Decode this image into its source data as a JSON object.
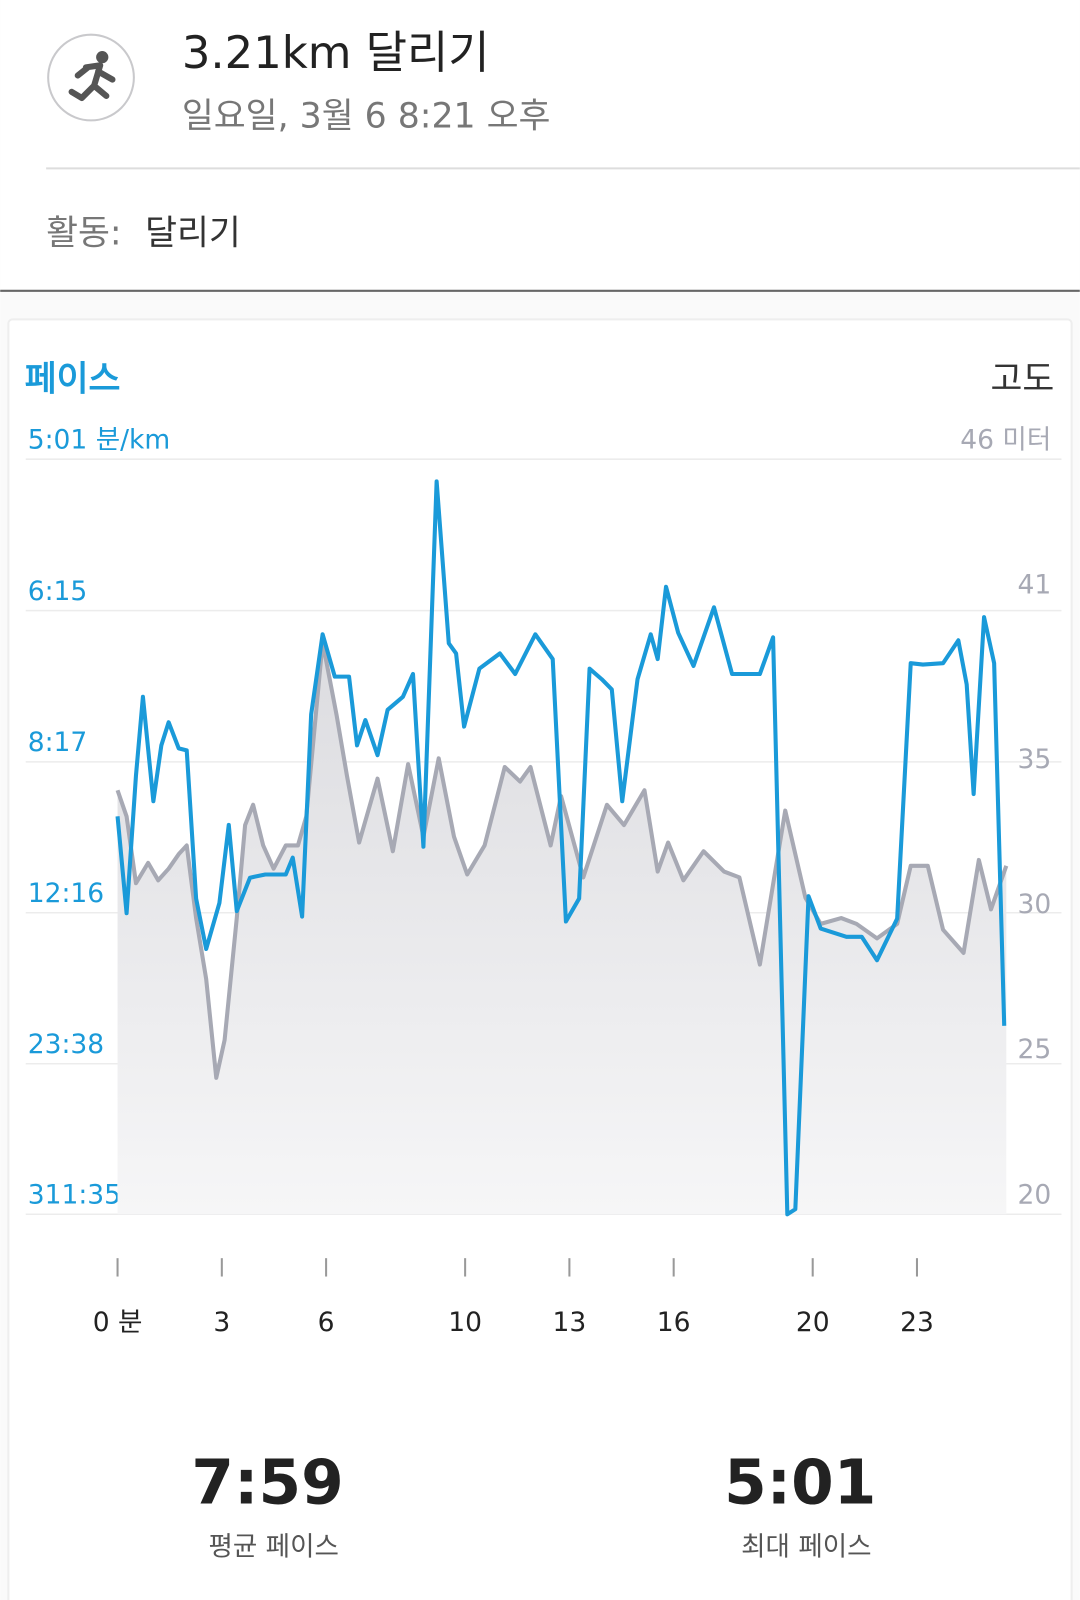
{
  "header": {
    "title": "3.21km 달리기",
    "subtitle": "일요일, 3월 6 8:21 오후"
  },
  "activity": {
    "label": "활동:",
    "value": "달리기"
  },
  "chart_data": {
    "type": "line",
    "y_title": "페이스",
    "y2_title": "고도",
    "y_scale": "reciprocal",
    "xlim": [
      0,
      25.6
    ],
    "xticks": [
      {
        "value": 0,
        "label": "0 분"
      },
      3,
      6,
      10,
      13,
      16,
      20,
      23
    ],
    "ylim": [
      301,
      18695
    ],
    "yticks": [
      {
        "value": 301,
        "label": "5:01 분/km"
      },
      {
        "value": 375,
        "label": "6:15"
      },
      {
        "value": 497,
        "label": "8:17"
      },
      {
        "value": 736,
        "label": "12:16"
      },
      {
        "value": 1418,
        "label": "23:38"
      },
      {
        "value": 18695,
        "label": "311:35"
      }
    ],
    "y2lim": [
      20,
      46
    ],
    "y2ticks": [
      {
        "value": 46,
        "label": "46 미터"
      },
      41,
      35,
      30,
      25,
      20
    ],
    "grid": true,
    "series": [
      {
        "name": "고도",
        "axis": "y2",
        "color": "#a7a9b4",
        "fill": true,
        "x": [
          0,
          0.26,
          0.53,
          0.88,
          1.17,
          1.47,
          1.76,
          1.99,
          2.26,
          2.55,
          2.84,
          3.08,
          3.43,
          3.67,
          3.9,
          4.19,
          4.49,
          4.84,
          5.19,
          5.43,
          5.9,
          6.3,
          6.6,
          6.95,
          7.48,
          7.92,
          8.36,
          8.8,
          9.24,
          9.68,
          10.06,
          10.56,
          11.14,
          11.58,
          11.88,
          12.46,
          12.76,
          13.4,
          14.08,
          14.57,
          15.16,
          15.54,
          15.84,
          16.28,
          16.86,
          17.45,
          17.89,
          18.48,
          19.21,
          19.79,
          20.23,
          20.82,
          21.26,
          21.85,
          22.43,
          22.82,
          23.31,
          23.75,
          24.34,
          24.78,
          25.13,
          25.57
        ],
        "values": [
          34.6,
          33.7,
          31.4,
          32.1,
          31.5,
          31.9,
          32.4,
          32.7,
          30.2,
          28.1,
          24.7,
          26.0,
          30.2,
          33.4,
          34.1,
          32.7,
          31.9,
          32.7,
          32.7,
          33.7,
          39.7,
          37.2,
          35.1,
          32.8,
          35.0,
          32.5,
          35.5,
          33.0,
          35.7,
          33.0,
          31.7,
          32.7,
          35.4,
          34.9,
          35.4,
          32.7,
          34.4,
          31.6,
          34.1,
          33.4,
          34.6,
          31.8,
          32.8,
          31.5,
          32.5,
          31.8,
          31.6,
          28.6,
          33.9,
          30.9,
          30.0,
          30.2,
          30.0,
          29.5,
          30.0,
          32.0,
          32.0,
          29.8,
          29.0,
          32.2,
          30.5,
          32.0
        ]
      },
      {
        "name": "페이스",
        "axis": "y",
        "color": "#1a9ad9",
        "x": [
          0,
          0.26,
          0.53,
          0.73,
          1.03,
          1.26,
          1.47,
          1.76,
          1.99,
          2.26,
          2.55,
          2.93,
          3.2,
          3.43,
          3.81,
          4.25,
          4.84,
          5.04,
          5.31,
          5.57,
          5.9,
          6.25,
          6.66,
          6.89,
          7.13,
          7.48,
          7.77,
          8.21,
          8.5,
          8.8,
          9.18,
          9.53,
          9.74,
          9.97,
          10.41,
          11.0,
          11.44,
          12.02,
          12.52,
          12.9,
          13.28,
          13.58,
          13.93,
          14.22,
          14.52,
          14.96,
          15.34,
          15.54,
          15.78,
          16.13,
          16.57,
          17.16,
          17.68,
          18.48,
          18.86,
          19.06,
          19.27,
          19.5,
          19.88,
          20.23,
          20.97,
          21.41,
          21.85,
          22.43,
          22.82,
          23.17,
          23.75,
          24.19,
          24.43,
          24.63,
          24.93,
          25.22,
          25.51
        ],
        "values": [
          563,
          737,
          512,
          436,
          543,
          480,
          458,
          483,
          485,
          704,
          832,
          714,
          575,
          732,
          662,
          656,
          656,
          626,
          745,
          451,
          390,
          420,
          420,
          480,
          456,
          490,
          447,
          436,
          418,
          608,
          310,
          396,
          403,
          462,
          414,
          403,
          418,
          390,
          407,
          757,
          704,
          414,
          422,
          430,
          543,
          422,
          390,
          407,
          361,
          389,
          412,
          373,
          418,
          418,
          392,
          750,
          18695,
          13228,
          699,
          775,
          797,
          797,
          867,
          750,
          410,
          411,
          410,
          394,
          426,
          534,
          379,
          410,
          1150
        ]
      }
    ]
  },
  "stats": [
    {
      "value": "7:59",
      "label": "평균 페이스"
    },
    {
      "value": "5:01",
      "label": "최대 페이스"
    }
  ]
}
